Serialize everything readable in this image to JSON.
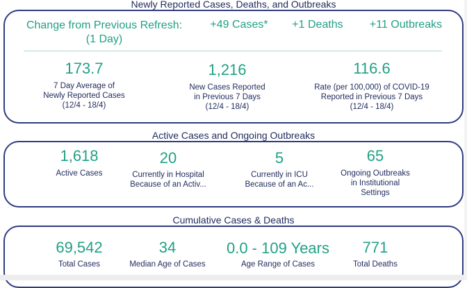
{
  "section1": {
    "title": "Newly Reported Cases, Deaths, and Outbreaks",
    "change_label_line1": "Change from Previous Refresh:",
    "change_label_line2": "(1 Day)",
    "cases_change": "+49 Cases*",
    "deaths_change": "+1 Deaths",
    "outbreaks_change": "+11 Outbreaks",
    "stats": [
      {
        "value": "173.7",
        "label1": "7 Day Average of",
        "label2": "Newly Reported Cases",
        "label3": "(12/4 - 18/4)"
      },
      {
        "value": "1,216",
        "label1": "New Cases Reported",
        "label2": "in Previous 7 Days",
        "label3": "(12/4 - 18/4)"
      },
      {
        "value": "116.6",
        "label1": "Rate (per 100,000) of COVID-19",
        "label2": "Reported in Previous 7 Days",
        "label3": "(12/4 - 18/4)"
      }
    ]
  },
  "section2": {
    "title": "Active Cases and Ongoing Outbreaks",
    "stats": [
      {
        "value": "1,618",
        "label1": "Active Cases",
        "label2": "",
        "label3": ""
      },
      {
        "value": "20",
        "label1": "Currently in Hospital",
        "label2": "Because of an Activ...",
        "label3": ""
      },
      {
        "value": "5",
        "label1": "Currently in ICU",
        "label2": "Because of an Ac...",
        "label3": ""
      },
      {
        "value": "65",
        "label1": "Ongoing Outbreaks",
        "label2": "in Institutional",
        "label3": "Settings"
      }
    ]
  },
  "section3": {
    "title": "Cumulative Cases & Deaths",
    "stats": [
      {
        "value": "69,542",
        "label1": "Total Cases"
      },
      {
        "value": "34",
        "label1": "Median Age of Cases"
      },
      {
        "value": "0.0 - 109 Years",
        "label1": "Age Range of Cases"
      },
      {
        "value": "771",
        "label1": "Total Deaths"
      }
    ]
  },
  "colors": {
    "accent": "#21a085",
    "navy": "#1f2a5c",
    "border": "#2f3a80"
  }
}
